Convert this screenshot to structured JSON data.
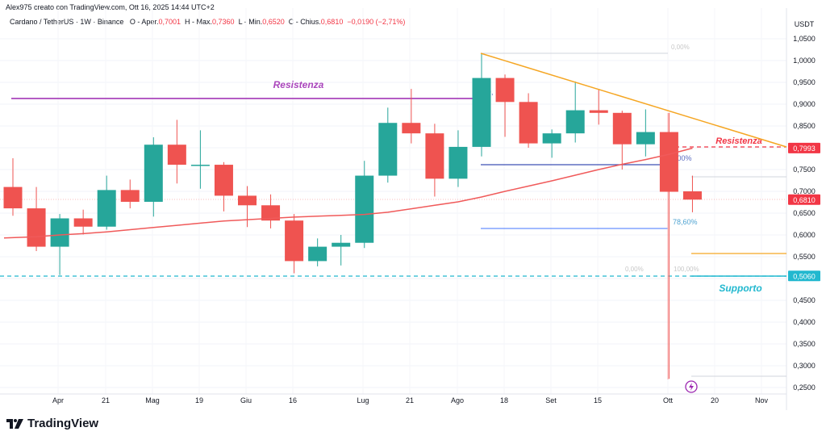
{
  "header": {
    "author_line": "Alex975 creato con TradingView.com, Ott 16, 2025 14:44 UTC+2",
    "symbol": "Cardano / TetherUS · 1W · Binance",
    "open_label": "O - Aper.",
    "open": "0,7001",
    "high_label": "H - Max.",
    "high": "0,7360",
    "low_label": "L - Min.",
    "low": "0,6520",
    "close_label": "C - Chius.",
    "close": "0,6810",
    "change": "−0,0190 (−2,71%)"
  },
  "price_axis": {
    "currency": "USDT",
    "ticks": [
      "1,0500",
      "1,0000",
      "0,9500",
      "0,9000",
      "0,8500",
      "0,7500",
      "0,7000",
      "0,6500",
      "0,6000",
      "0,5500",
      "0,4500",
      "0,4000",
      "0,3500",
      "0,3000",
      "0,2500"
    ],
    "badges": [
      {
        "value": "0,7993",
        "color": "#f23645"
      },
      {
        "value": "0,6810",
        "color": "#f23645"
      },
      {
        "value": "0,5060",
        "color": "#22b8cf"
      }
    ]
  },
  "time_axis": [
    "Apr",
    "21",
    "Mag",
    "19",
    "Giu",
    "16",
    "Lug",
    "21",
    "Ago",
    "18",
    "Set",
    "15",
    "Ott",
    "20",
    "Nov"
  ],
  "annotations": {
    "resistance_top": "Resistenza",
    "resistance_right": "Resistenza",
    "support": "Supporto",
    "fib_0_top": "0,00%",
    "fib_0_mid": "0,00%",
    "fib_786": "78,60%",
    "fib_0_low": "0,00%",
    "fib_100": "100,00%",
    "fib_0_left": "0,"
  },
  "footer": {
    "brand": "TradingView"
  },
  "colors": {
    "up": "#26a69a",
    "down": "#ef5350",
    "ma": "#f05a5a",
    "trend": "#f5a623",
    "resistance": "#9c27b0",
    "support": "#22b8cf",
    "fib_blue": "#3f51b5"
  },
  "chart_data": {
    "type": "candlestick",
    "title": "Cardano / TetherUS · 1W · Binance",
    "ylabel": "USDT",
    "ylim": [
      0.25,
      1.05
    ],
    "x_ticks": [
      "Apr",
      "21",
      "Mag",
      "19",
      "Giu",
      "16",
      "Lug",
      "21",
      "Ago",
      "18",
      "Set",
      "15",
      "Ott",
      "20",
      "Nov"
    ],
    "candles": [
      {
        "o": 0.71,
        "h": 0.776,
        "l": 0.644,
        "c": 0.661
      },
      {
        "o": 0.661,
        "h": 0.71,
        "l": 0.563,
        "c": 0.573
      },
      {
        "o": 0.573,
        "h": 0.648,
        "l": 0.508,
        "c": 0.638
      },
      {
        "o": 0.638,
        "h": 0.658,
        "l": 0.601,
        "c": 0.619
      },
      {
        "o": 0.619,
        "h": 0.736,
        "l": 0.612,
        "c": 0.703
      },
      {
        "o": 0.703,
        "h": 0.727,
        "l": 0.661,
        "c": 0.676
      },
      {
        "o": 0.676,
        "h": 0.824,
        "l": 0.642,
        "c": 0.807
      },
      {
        "o": 0.807,
        "h": 0.864,
        "l": 0.718,
        "c": 0.761
      },
      {
        "o": 0.761,
        "h": 0.84,
        "l": 0.706,
        "c": 0.761
      },
      {
        "o": 0.761,
        "h": 0.767,
        "l": 0.654,
        "c": 0.69
      },
      {
        "o": 0.69,
        "h": 0.712,
        "l": 0.618,
        "c": 0.668
      },
      {
        "o": 0.668,
        "h": 0.693,
        "l": 0.615,
        "c": 0.633
      },
      {
        "o": 0.633,
        "h": 0.648,
        "l": 0.512,
        "c": 0.54
      },
      {
        "o": 0.54,
        "h": 0.592,
        "l": 0.528,
        "c": 0.573
      },
      {
        "o": 0.573,
        "h": 0.6,
        "l": 0.53,
        "c": 0.582
      },
      {
        "o": 0.582,
        "h": 0.77,
        "l": 0.57,
        "c": 0.736
      },
      {
        "o": 0.736,
        "h": 0.892,
        "l": 0.72,
        "c": 0.857
      },
      {
        "o": 0.857,
        "h": 0.935,
        "l": 0.81,
        "c": 0.833
      },
      {
        "o": 0.833,
        "h": 0.855,
        "l": 0.688,
        "c": 0.729
      },
      {
        "o": 0.729,
        "h": 0.84,
        "l": 0.71,
        "c": 0.802
      },
      {
        "o": 0.802,
        "h": 1.017,
        "l": 0.78,
        "c": 0.96
      },
      {
        "o": 0.96,
        "h": 0.968,
        "l": 0.825,
        "c": 0.905
      },
      {
        "o": 0.905,
        "h": 0.925,
        "l": 0.8,
        "c": 0.81
      },
      {
        "o": 0.81,
        "h": 0.842,
        "l": 0.777,
        "c": 0.833
      },
      {
        "o": 0.833,
        "h": 0.952,
        "l": 0.812,
        "c": 0.886
      },
      {
        "o": 0.886,
        "h": 0.935,
        "l": 0.853,
        "c": 0.88
      },
      {
        "o": 0.88,
        "h": 0.885,
        "l": 0.75,
        "c": 0.808
      },
      {
        "o": 0.808,
        "h": 0.888,
        "l": 0.78,
        "c": 0.836
      },
      {
        "o": 0.836,
        "h": 0.88,
        "l": 0.27,
        "c": 0.699
      },
      {
        "o": 0.7,
        "h": 0.736,
        "l": 0.652,
        "c": 0.681
      }
    ],
    "moving_average": {
      "start": 0.593,
      "end": 0.7993
    },
    "lines": {
      "resistance_horizontal": 0.91,
      "support_horizontal": 0.506,
      "descending_trendline": {
        "from": 1.017,
        "to": 0.7993
      },
      "resistance_dashed": 0.7993
    }
  }
}
